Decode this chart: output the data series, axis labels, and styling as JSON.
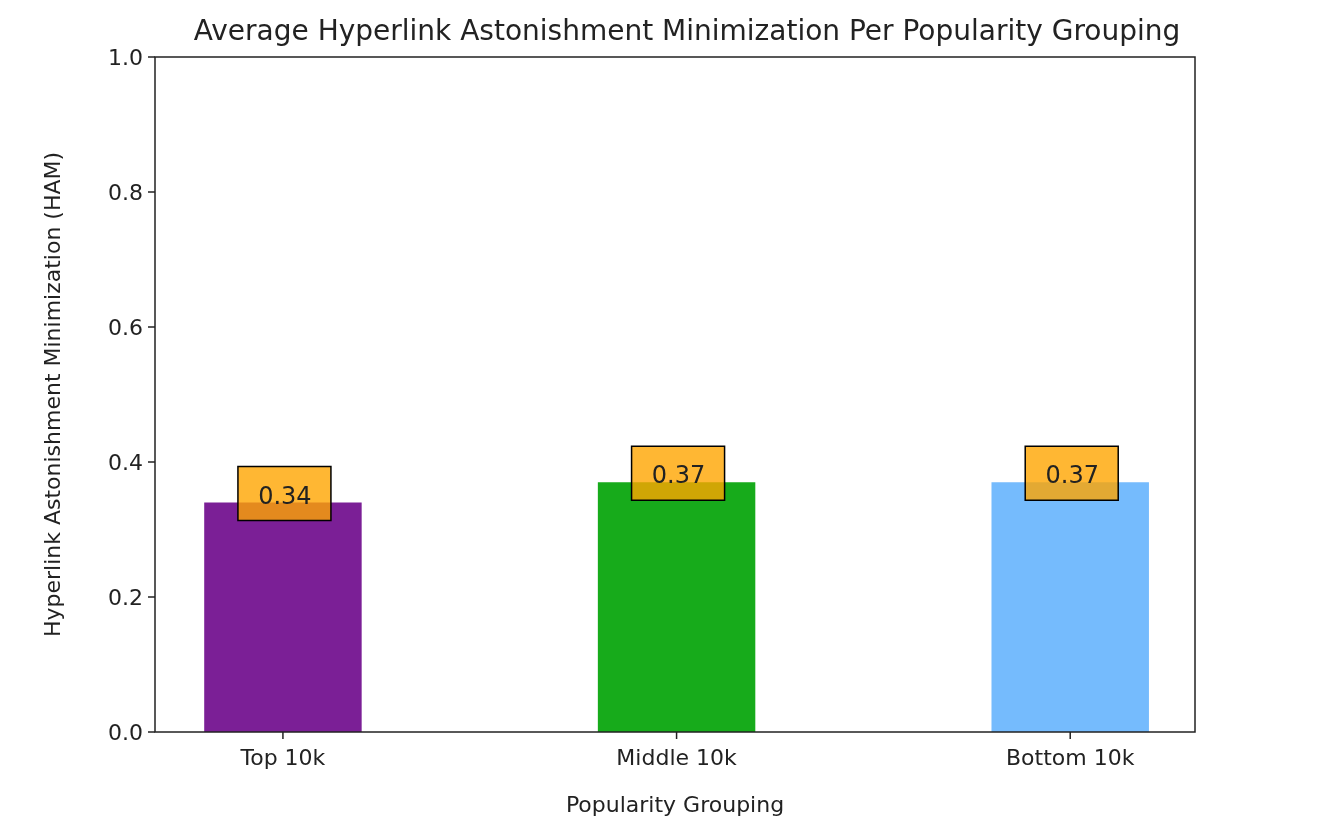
{
  "chart_data": {
    "type": "bar",
    "title": "Average Hyperlink Astonishment Minimization Per Popularity Grouping",
    "xlabel": "Popularity Grouping",
    "ylabel": "Hyperlink Astonishment Minimization (HAM)",
    "categories": [
      "Top 10k",
      "Middle 10k",
      "Bottom 10k"
    ],
    "values": [
      0.34,
      0.37,
      0.37
    ],
    "colors": [
      "#7b1f96",
      "#17ab1b",
      "#75bbfd"
    ],
    "ylim": [
      0,
      1
    ],
    "yticks": [
      {
        "value": 0,
        "label": "0.0"
      },
      {
        "value": 0.2,
        "label": "0.2"
      },
      {
        "value": 0.4,
        "label": "0.4"
      },
      {
        "value": 0.6,
        "label": "0.6"
      },
      {
        "value": 0.8,
        "label": "0.8"
      },
      {
        "value": 1,
        "label": "1.0"
      }
    ],
    "data_labels": true,
    "grid": false
  }
}
